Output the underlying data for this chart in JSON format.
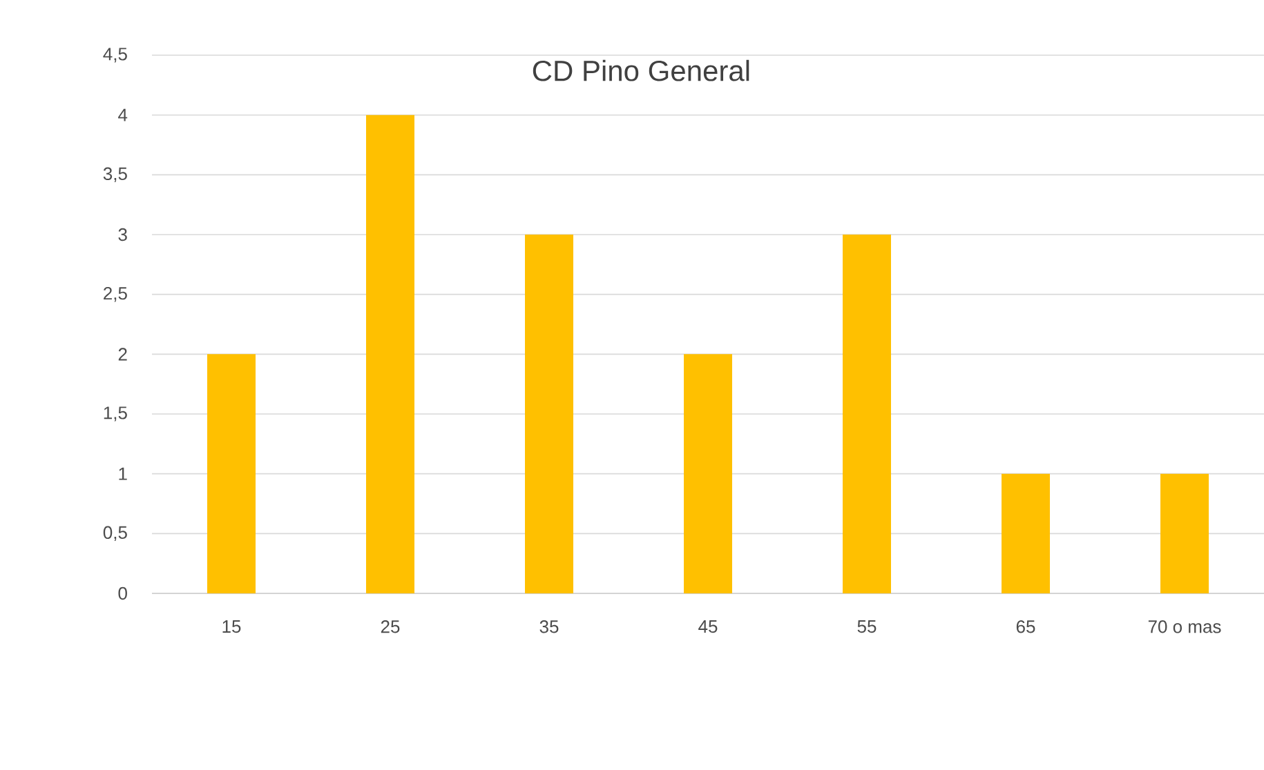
{
  "chart_data": {
    "type": "bar",
    "title": "CD Pino General",
    "categories": [
      "15",
      "25",
      "35",
      "45",
      "55",
      "65",
      "70 o mas"
    ],
    "values": [
      2,
      4,
      3,
      2,
      3,
      1,
      1
    ],
    "color": "#ffc000",
    "ylim": [
      0,
      4.5
    ],
    "yticks": [
      0,
      {
        "value": 0.5,
        "label": "0,5"
      },
      1,
      {
        "value": 1.5,
        "label": "1,5"
      },
      2,
      {
        "value": 2.5,
        "label": "2,5"
      },
      3,
      {
        "value": 3.5,
        "label": "3,5"
      },
      4,
      {
        "value": 4.5,
        "label": "4,5"
      }
    ],
    "grid": "y"
  }
}
